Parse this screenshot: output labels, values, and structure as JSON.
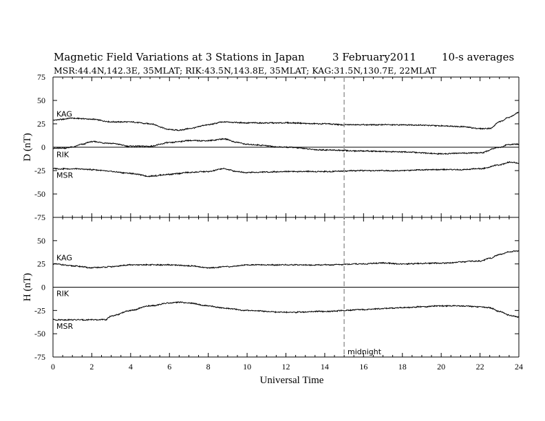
{
  "chart_data": {
    "type": "line",
    "title": "Magnetic Field Variations at 3 Stations in Japan",
    "date": "3   February2011",
    "averaging": "10-s averages",
    "subtitle": "MSR:44.4N,142.3E, 35MLAT;  RIK:43.5N,143.8E, 35MLAT;  KAG:31.5N,130.7E, 22MLAT",
    "xlabel": "Universal Time",
    "xlim": [
      0,
      24
    ],
    "xticks": [
      0,
      2,
      4,
      6,
      8,
      10,
      12,
      14,
      16,
      18,
      20,
      22,
      24
    ],
    "annotation": {
      "x": 15,
      "label": "midnight"
    },
    "panels": [
      {
        "ylabel": "D (nT)",
        "ylim": [
          -75,
          75
        ],
        "yticks": [
          75,
          50,
          25,
          0,
          -25,
          -50,
          -75
        ],
        "series": [
          {
            "name": "KAG",
            "x": [
              0,
              1,
              2,
              3,
              4,
              5,
              6,
              6.5,
              7,
              8,
              8.8,
              10,
              12,
              14,
              15,
              16,
              18,
              20,
              21,
              22,
              22.5,
              23,
              23.5,
              24
            ],
            "y": [
              29,
              31,
              30,
              27,
              27,
              25,
              19,
              18,
              20,
              24,
              27,
              26,
              26,
              25,
              24,
              24,
              24,
              23,
              22,
              20,
              20,
              27,
              32,
              37
            ]
          },
          {
            "name": "RIK",
            "x": [
              0,
              0.5,
              1,
              1.5,
              2,
              3,
              4,
              5,
              6,
              7,
              8,
              8.8,
              9.5,
              10,
              12,
              14,
              16,
              18,
              20,
              22,
              23,
              23.5,
              24
            ],
            "y": [
              -1,
              -1,
              0,
              3,
              6,
              4,
              1,
              1,
              5,
              7,
              7,
              9,
              5,
              3,
              0,
              -3,
              -4,
              -5,
              -7,
              -6,
              0,
              3,
              3
            ]
          },
          {
            "name": "MSR",
            "x": [
              0,
              1,
              2,
              3,
              4,
              5,
              6,
              7,
              8,
              8.8,
              9.5,
              10,
              12,
              14,
              16,
              18,
              19,
              20,
              21,
              22,
              23,
              23.5,
              24
            ],
            "y": [
              -23,
              -23,
              -24,
              -26,
              -28,
              -31,
              -29,
              -27,
              -26,
              -23,
              -26,
              -27,
              -26,
              -26,
              -25,
              -25,
              -24,
              -24,
              -24,
              -23,
              -19,
              -16,
              -17
            ]
          }
        ]
      },
      {
        "ylabel": "H (nT)",
        "ylim": [
          -75,
          75
        ],
        "yticks": [
          50,
          25,
          0,
          -25,
          -50,
          -75
        ],
        "series": [
          {
            "name": "KAG",
            "x": [
              0,
              1,
              2,
              3,
              4,
              5,
              6,
              7,
              8,
              9,
              10,
              12,
              14,
              16,
              17,
              18,
              20,
              22,
              22.5,
              23,
              23.5,
              24
            ],
            "y": [
              25,
              23,
              21,
              22,
              24,
              24,
              24,
              23,
              21,
              22,
              24,
              24,
              24,
              25,
              26,
              25,
              26,
              28,
              31,
              35,
              38,
              39
            ]
          },
          {
            "name": "RIK",
            "x": [
              0,
              24
            ],
            "y": [
              0,
              0
            ]
          },
          {
            "name": "MSR",
            "x": [
              0,
              1,
              2,
              2.7,
              3,
              4,
              5,
              6,
              6.5,
              7,
              8,
              9,
              10,
              12,
              14,
              16,
              17,
              18,
              19,
              20,
              21,
              22,
              22.5,
              23,
              23.5,
              24
            ],
            "y": [
              -35,
              -35,
              -35,
              -35,
              -31,
              -25,
              -20,
              -17,
              -16,
              -17,
              -20,
              -23,
              -25,
              -27,
              -26,
              -24,
              -23,
              -22,
              -21,
              -20,
              -20,
              -21,
              -22,
              -26,
              -30,
              -32
            ]
          }
        ]
      }
    ],
    "grid": false
  }
}
